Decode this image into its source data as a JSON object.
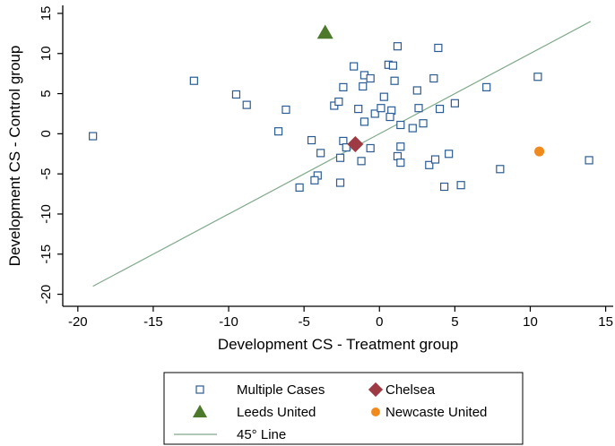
{
  "chart_data": {
    "type": "scatter",
    "xlabel": "Development CS - Treatment group",
    "ylabel": "Development CS - Control group",
    "xlim": [
      -21,
      15.5
    ],
    "ylim": [
      -21.5,
      16
    ],
    "xticks": [
      -20,
      -15,
      -10,
      -5,
      0,
      5,
      10,
      15
    ],
    "yticks": [
      -20,
      -15,
      -10,
      -5,
      0,
      5,
      10,
      15
    ],
    "tick_labels_x": [
      "-20",
      "-15",
      "-10",
      "-5",
      "0",
      "5",
      "10",
      "15"
    ],
    "tick_labels_y": [
      "-20",
      "-15",
      "-10",
      "-5",
      "0",
      "5",
      "10",
      "15"
    ],
    "grid": false,
    "legend_position": "bottom",
    "series": [
      {
        "name": "Multiple Cases",
        "marker": "hollow-square",
        "color": "#2b5c94",
        "points": [
          [
            -19,
            -0.3
          ],
          [
            -12.3,
            6.6
          ],
          [
            -9.5,
            4.9
          ],
          [
            -8.8,
            3.6
          ],
          [
            -6.2,
            3.0
          ],
          [
            -6.7,
            0.3
          ],
          [
            -4.5,
            -0.8
          ],
          [
            -3.9,
            -2.4
          ],
          [
            -4.1,
            -5.2
          ],
          [
            -4.3,
            -5.8
          ],
          [
            -5.3,
            -6.7
          ],
          [
            -3.0,
            3.5
          ],
          [
            -2.7,
            4.0
          ],
          [
            -2.4,
            5.8
          ],
          [
            -1.7,
            8.4
          ],
          [
            -1.0,
            7.3
          ],
          [
            -0.6,
            6.9
          ],
          [
            -1.1,
            5.9
          ],
          [
            -1.4,
            3.1
          ],
          [
            -1.0,
            1.5
          ],
          [
            -0.3,
            2.5
          ],
          [
            0.1,
            3.2
          ],
          [
            0.3,
            4.6
          ],
          [
            0.6,
            8.6
          ],
          [
            0.9,
            8.5
          ],
          [
            1.2,
            10.9
          ],
          [
            0.8,
            2.9
          ],
          [
            0.7,
            2.1
          ],
          [
            1.0,
            6.6
          ],
          [
            1.4,
            1.1
          ],
          [
            2.2,
            0.7
          ],
          [
            2.5,
            5.4
          ],
          [
            2.6,
            3.2
          ],
          [
            2.9,
            1.3
          ],
          [
            3.6,
            6.9
          ],
          [
            3.9,
            10.7
          ],
          [
            4.0,
            3.1
          ],
          [
            5.0,
            3.8
          ],
          [
            7.1,
            5.8
          ],
          [
            10.5,
            7.1
          ],
          [
            -2.4,
            -0.9
          ],
          [
            -2.2,
            -1.7
          ],
          [
            -2.6,
            -3.0
          ],
          [
            -1.2,
            -3.4
          ],
          [
            -0.6,
            -1.8
          ],
          [
            1.2,
            -2.8
          ],
          [
            1.4,
            -3.6
          ],
          [
            1.4,
            -1.6
          ],
          [
            3.3,
            -3.9
          ],
          [
            3.7,
            -3.2
          ],
          [
            4.6,
            -2.5
          ],
          [
            5.4,
            -6.4
          ],
          [
            4.3,
            -6.6
          ],
          [
            -2.6,
            -6.1
          ],
          [
            8.0,
            -4.4
          ],
          [
            13.9,
            -3.3
          ]
        ]
      },
      {
        "name": "Chelsea",
        "marker": "diamond",
        "color": "#9e3a44",
        "points": [
          [
            -1.6,
            -1.3
          ]
        ]
      },
      {
        "name": "Leeds United",
        "marker": "triangle",
        "color": "#4d7a2a",
        "points": [
          [
            -3.6,
            12.6
          ]
        ]
      },
      {
        "name": "Newcaste United",
        "marker": "circle",
        "color": "#f08a1c",
        "points": [
          [
            10.6,
            -2.2
          ]
        ]
      }
    ],
    "lines": [
      {
        "name": "45° Line",
        "color": "#7fa98a",
        "points": [
          [
            -19,
            -19
          ],
          [
            14,
            14
          ]
        ]
      }
    ]
  },
  "legend": {
    "items": [
      {
        "label": "Multiple Cases",
        "marker": "hollow-square",
        "color": "#2b5c94"
      },
      {
        "label": "Chelsea",
        "marker": "diamond",
        "color": "#9e3a44"
      },
      {
        "label": "Leeds United",
        "marker": "triangle",
        "color": "#4d7a2a"
      },
      {
        "label": "Newcaste United",
        "marker": "circle",
        "color": "#f08a1c"
      },
      {
        "label": "45° Line",
        "marker": "line",
        "color": "#7fa98a"
      }
    ]
  }
}
